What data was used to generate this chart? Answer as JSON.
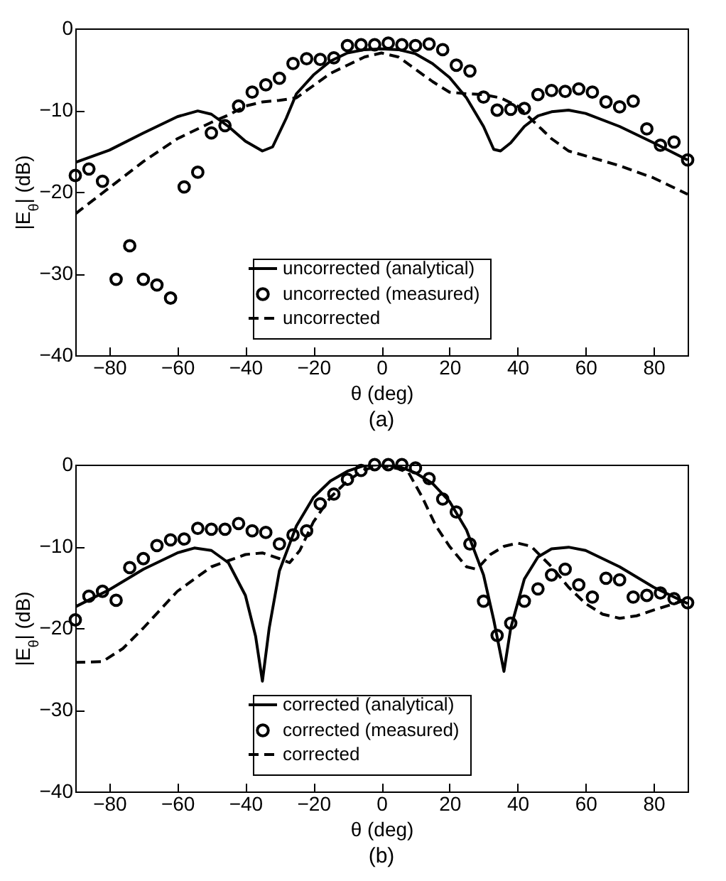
{
  "chart_data": [
    {
      "type": "line",
      "title": "(a)",
      "xlabel": "θ (deg)",
      "ylabel": "|E$_{θ}$| (dB)",
      "xlim": [
        -90,
        90
      ],
      "xticks": [
        -80,
        -60,
        -40,
        -20,
        0,
        20,
        40,
        60,
        80
      ],
      "ylim": [
        -40,
        0
      ],
      "yticks": [
        -40,
        -30,
        -20,
        -10,
        0
      ],
      "legend": "bottom",
      "grid": false,
      "series": [
        {
          "name": "uncorrected (analytical)",
          "line_style": "solid",
          "color": "#000000",
          "x": [
            -90,
            -80,
            -70,
            -60,
            -54,
            -50,
            -45,
            -40,
            -35,
            -32,
            -28,
            -25,
            -20,
            -15,
            -10,
            -5,
            0,
            5,
            10,
            15,
            20,
            25,
            30,
            33,
            35,
            38,
            42,
            46,
            50,
            55,
            60,
            70,
            80,
            90
          ],
          "values": [
            -16.4,
            -14.9,
            -12.8,
            -10.8,
            -10.1,
            -10.5,
            -12,
            -13.8,
            -15,
            -14.5,
            -11,
            -8,
            -5.7,
            -4,
            -3,
            -2.6,
            -2.5,
            -2.6,
            -3.1,
            -4.3,
            -6,
            -8.5,
            -12,
            -14.8,
            -15,
            -14,
            -12,
            -10.7,
            -10.2,
            -10,
            -10.4,
            -12,
            -14,
            -16.1
          ]
        },
        {
          "name": "uncorrected (measured)",
          "type": "scatter",
          "marker": "circle",
          "color": "#000000",
          "x": [
            -90,
            -86,
            -82,
            -78,
            -74,
            -70,
            -66,
            -62,
            -58,
            -54,
            -50,
            -46,
            -42,
            -38,
            -34,
            -30,
            -26,
            -22,
            -18,
            -14,
            -10,
            -6,
            -2,
            2,
            6,
            10,
            14,
            18,
            22,
            26,
            30,
            34,
            38,
            42,
            46,
            50,
            54,
            58,
            62,
            66,
            70,
            74,
            78,
            82,
            86,
            90
          ],
          "values": [
            -18.0,
            -17.2,
            -18.7,
            -30.7,
            -26.6,
            -30.7,
            -31.4,
            -33.0,
            -19.4,
            -17.6,
            -12.8,
            -11.9,
            -9.5,
            -7.8,
            -6.9,
            -6.1,
            -4.3,
            -3.7,
            -3.8,
            -3.6,
            -2.1,
            -2.0,
            -2.0,
            -1.8,
            -2.0,
            -2.1,
            -1.9,
            -2.6,
            -4.5,
            -5.2,
            -8.4,
            -10.0,
            -9.9,
            -9.8,
            -8.1,
            -7.6,
            -7.7,
            -7.4,
            -7.8,
            -9.0,
            -9.6,
            -8.9,
            -12.3,
            -14.3,
            -13.9,
            -16.1
          ]
        },
        {
          "name": "uncorrected",
          "line_style": "dashed",
          "color": "#000000",
          "x": [
            -90,
            -80,
            -70,
            -60,
            -50,
            -45,
            -40,
            -35,
            -30,
            -25,
            -20,
            -15,
            -10,
            -5,
            0,
            5,
            10,
            15,
            20,
            25,
            30,
            35,
            40,
            45,
            50,
            55,
            60,
            70,
            80,
            90
          ],
          "values": [
            -22.7,
            -19.5,
            -16.3,
            -13.5,
            -11.5,
            -10.6,
            -9.5,
            -9,
            -8.8,
            -8.5,
            -7,
            -5.5,
            -4.5,
            -3.5,
            -3,
            -3.5,
            -5,
            -6.5,
            -7.8,
            -8,
            -8.1,
            -8.5,
            -9.5,
            -11.5,
            -13.5,
            -15,
            -15.6,
            -16.8,
            -18.3,
            -20.3
          ]
        }
      ]
    },
    {
      "type": "line",
      "title": "(b)",
      "xlabel": "θ (deg)",
      "ylabel": "|E$_{θ}$| (dB)",
      "xlim": [
        -90,
        90
      ],
      "xticks": [
        -80,
        -60,
        -40,
        -20,
        0,
        20,
        40,
        60,
        80
      ],
      "ylim": [
        -40,
        0
      ],
      "yticks": [
        -40,
        -30,
        -20,
        -10,
        0
      ],
      "legend": "bottom",
      "grid": false,
      "series": [
        {
          "name": "corrected (analytical)",
          "line_style": "solid",
          "color": "#000000",
          "x": [
            -90,
            -80,
            -70,
            -60,
            -55,
            -50,
            -45,
            -40,
            -37,
            -35,
            -33,
            -30,
            -25,
            -20,
            -15,
            -10,
            -5,
            0,
            5,
            10,
            15,
            20,
            25,
            30,
            33,
            36,
            38,
            42,
            46,
            50,
            55,
            60,
            70,
            80,
            90
          ],
          "values": [
            -17.4,
            -15.3,
            -12.8,
            -10.8,
            -10.2,
            -10.5,
            -12,
            -16,
            -21,
            -26.5,
            -20,
            -13,
            -7.5,
            -4,
            -2,
            -0.8,
            -0.1,
            0,
            -0.2,
            -1,
            -2.3,
            -4.5,
            -8,
            -13.5,
            -19,
            -25.3,
            -20,
            -14,
            -11.3,
            -10.3,
            -10.1,
            -10.5,
            -12.5,
            -15,
            -17
          ]
        },
        {
          "name": "corrected (measured)",
          "type": "scatter",
          "marker": "circle",
          "color": "#000000",
          "x": [
            -90,
            -86,
            -82,
            -78,
            -74,
            -70,
            -66,
            -62,
            -58,
            -54,
            -50,
            -46,
            -42,
            -38,
            -34,
            -30,
            -26,
            -22,
            -18,
            -14,
            -10,
            -6,
            -2,
            2,
            6,
            10,
            14,
            18,
            22,
            26,
            30,
            34,
            38,
            42,
            46,
            50,
            54,
            58,
            62,
            66,
            70,
            74,
            78,
            82,
            86,
            90
          ],
          "values": [
            -19.0,
            -16.1,
            -15.5,
            -16.6,
            -12.6,
            -11.5,
            -9.9,
            -9.2,
            -9.1,
            -7.8,
            -7.9,
            -7.9,
            -7.2,
            -8.1,
            -8.3,
            -9.7,
            -8.6,
            -8.1,
            -4.8,
            -3.6,
            -1.8,
            -0.7,
            0,
            0,
            0,
            -0.4,
            -1.7,
            -4.2,
            -5.8,
            -9.7,
            -16.7,
            -20.9,
            -19.4,
            -16.7,
            -15.2,
            -13.5,
            -12.8,
            -14.7,
            -16.2,
            -13.9,
            -14.1,
            -16.2,
            -16.0,
            -15.7,
            -16.4,
            -16.9
          ]
        },
        {
          "name": "corrected",
          "line_style": "dashed",
          "color": "#000000",
          "x": [
            -90,
            -82,
            -76,
            -70,
            -60,
            -50,
            -40,
            -35,
            -30,
            -27,
            -24,
            -20,
            -15,
            -10,
            -5,
            0,
            5,
            8,
            12,
            16,
            20,
            25,
            28,
            32,
            36,
            40,
            44,
            50,
            55,
            60,
            65,
            70,
            75,
            80,
            90
          ],
          "values": [
            -24.2,
            -24.1,
            -22.5,
            -20,
            -15.5,
            -12.5,
            -11,
            -10.8,
            -11.5,
            -12,
            -10.5,
            -7,
            -4,
            -2,
            -0.6,
            -0.1,
            -0.5,
            -1,
            -4,
            -7.5,
            -10,
            -12.5,
            -12.8,
            -11,
            -10,
            -9.6,
            -10,
            -12.5,
            -15,
            -17,
            -18.3,
            -18.8,
            -18.5,
            -17.8,
            -16.5
          ]
        }
      ]
    }
  ]
}
